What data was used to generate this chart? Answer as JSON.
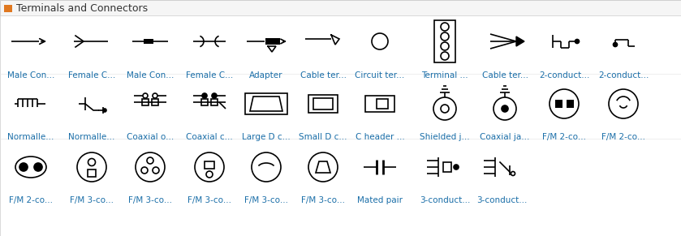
{
  "title": "Terminals and Connectors",
  "title_color": "#333333",
  "title_bg": "#f5f5f5",
  "title_icon_color": "#e07820",
  "background": "#ffffff",
  "border_color": "#cccccc",
  "symbol_color": "#000000",
  "label_color": "#1a6ea8",
  "label_fontsize": 7.5,
  "row1_labels": [
    "Male Con...",
    "Female C...",
    "Male Con...",
    "Female C...",
    "Adapter",
    "Cable ter...",
    "Circuit ter...",
    "Terminal ...",
    "Cable ter...",
    "2-conduct...",
    "2-conduct..."
  ],
  "row2_labels": [
    "Normalle...",
    "Normalle...",
    "Coaxial o...",
    "Coaxial c...",
    "Large D c...",
    "Small D c...",
    "C header ...",
    "Shielded j...",
    "Coaxial ja...",
    "F/M 2-co...",
    "F/M 2-co..."
  ],
  "row3_labels": [
    "F/M 2-co...",
    "F/M 3-co...",
    "F/M 3-co...",
    "F/M 3-co...",
    "F/M 3-co...",
    "F/M 3-co...",
    "Mated pair",
    "3-conduct...",
    "3-conduct..."
  ],
  "fig_width": 8.39,
  "fig_height": 2.91
}
